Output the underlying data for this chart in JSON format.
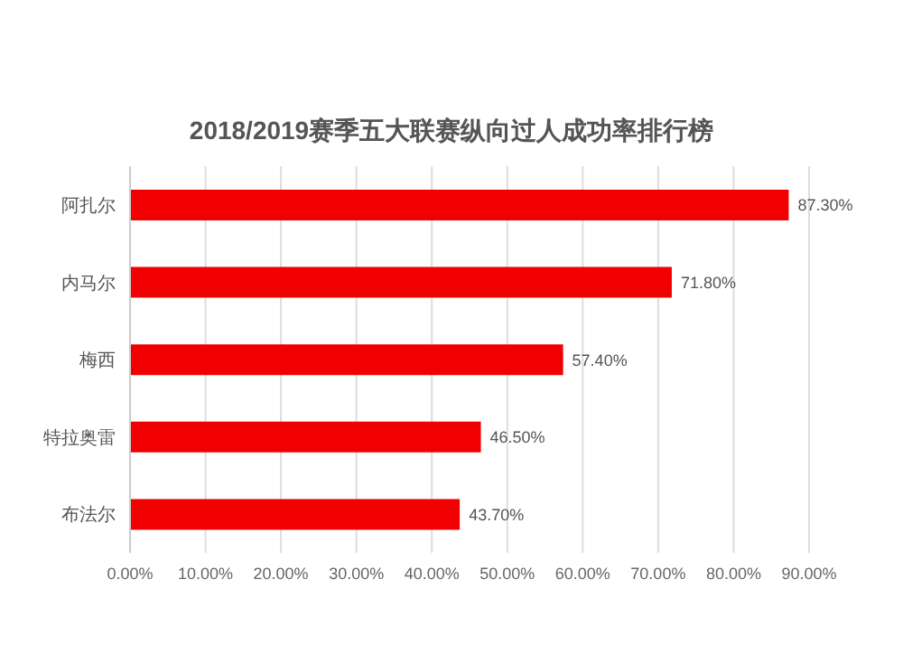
{
  "chart_data": {
    "type": "bar",
    "orientation": "horizontal",
    "title": "2018/2019赛季五大联赛纵向过人成功率排行榜",
    "categories": [
      "阿扎尔",
      "内马尔",
      "梅西",
      "特拉奥雷",
      "布法尔"
    ],
    "values": [
      87.3,
      71.8,
      57.4,
      46.5,
      43.7
    ],
    "value_labels": [
      "87.30%",
      "71.80%",
      "57.40%",
      "46.50%",
      "43.70%"
    ],
    "color": "#f00000",
    "xlim": [
      0,
      90
    ],
    "xticks": [
      {
        "value": 0,
        "label": "0.00%"
      },
      {
        "value": 10,
        "label": "10.00%"
      },
      {
        "value": 20,
        "label": "20.00%"
      },
      {
        "value": 30,
        "label": "30.00%"
      },
      {
        "value": 40,
        "label": "40.00%"
      },
      {
        "value": 50,
        "label": "50.00%"
      },
      {
        "value": 60,
        "label": "60.00%"
      },
      {
        "value": 70,
        "label": "70.00%"
      },
      {
        "value": 80,
        "label": "80.00%"
      },
      {
        "value": 90,
        "label": "90.00%"
      }
    ],
    "grid": "x"
  }
}
